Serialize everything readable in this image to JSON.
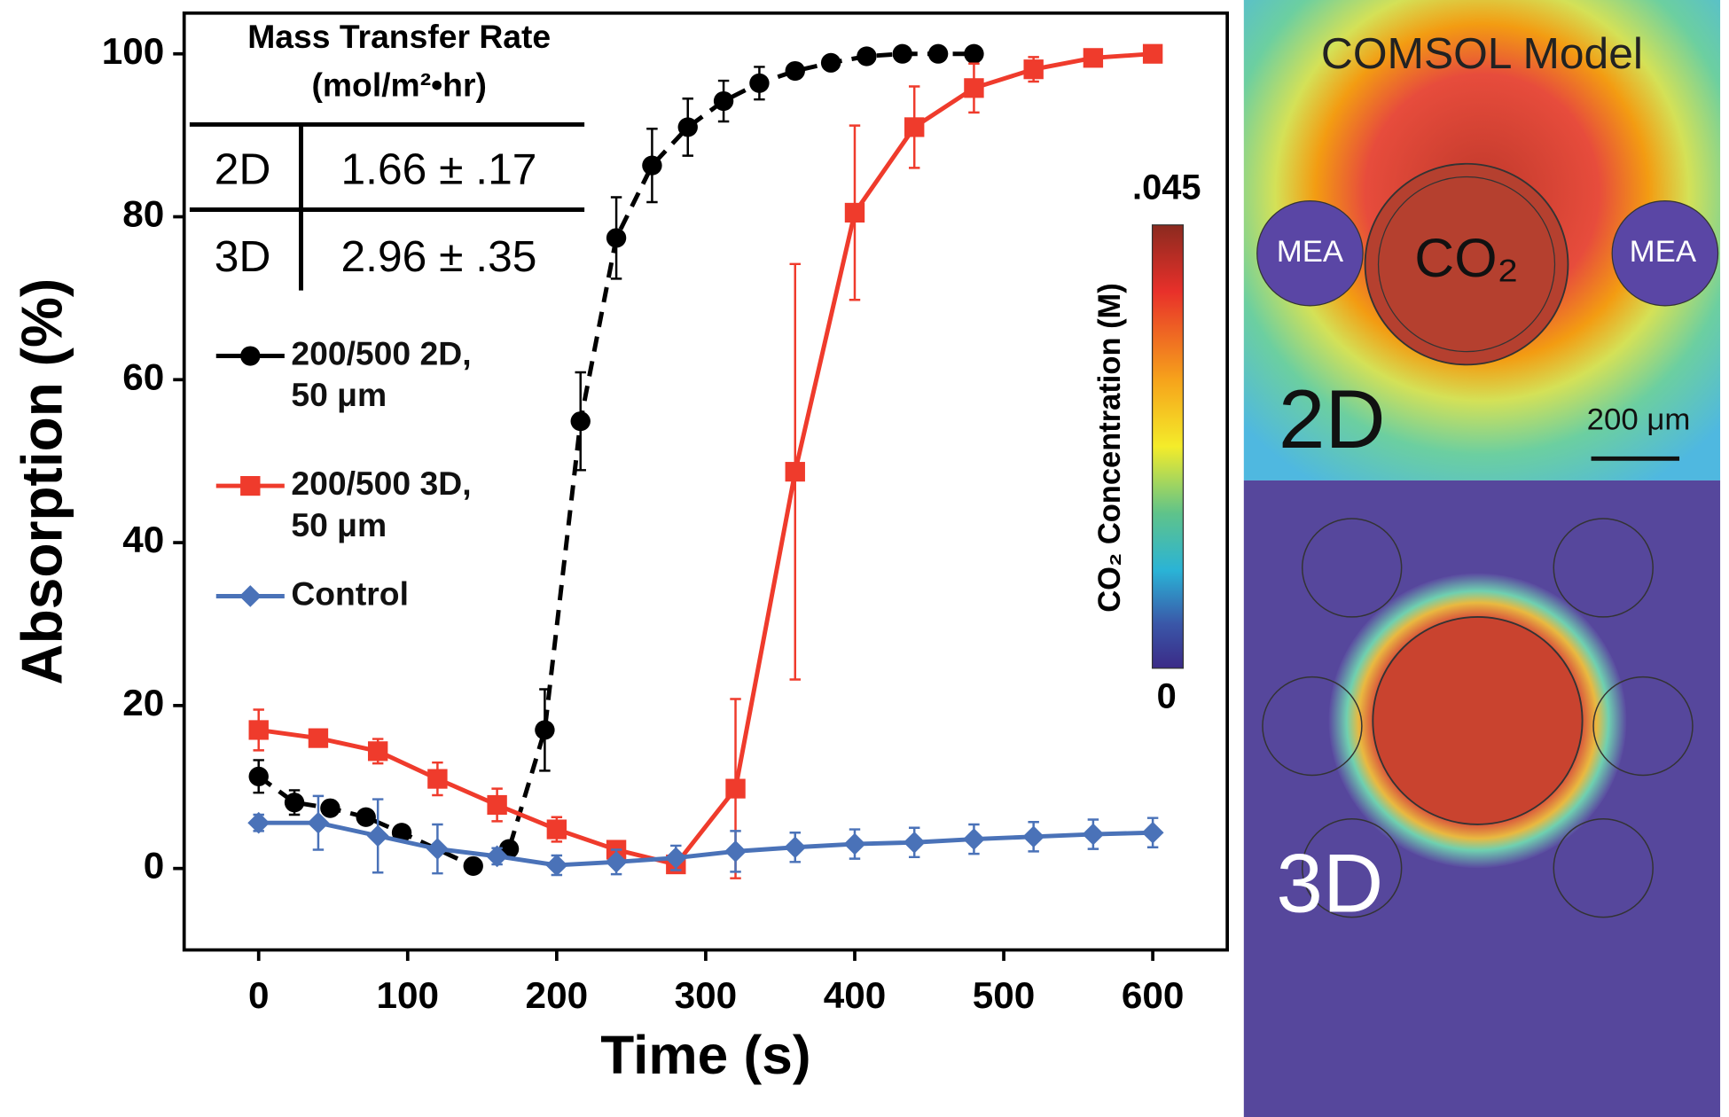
{
  "chart_data": {
    "type": "line",
    "x_label": "Time (s)",
    "y_label": "Absorption (%)",
    "xlim": [
      -50,
      650
    ],
    "ylim": [
      -10,
      105
    ],
    "xticks": [
      0,
      100,
      200,
      300,
      400,
      500,
      600
    ],
    "yticks": [
      0,
      20,
      40,
      60,
      80,
      100
    ],
    "series": [
      {
        "name": "200/500 2D, 50 μm",
        "color": "#000000",
        "marker": "circle",
        "dashed": true,
        "x": [
          0,
          24,
          48,
          72,
          96,
          144,
          168,
          192,
          216,
          240,
          264,
          288,
          312,
          336,
          360,
          384,
          408,
          432,
          456,
          480
        ],
        "values": [
          11.3,
          8.1,
          7.4,
          6.3,
          4.4,
          0.3,
          2.4,
          17,
          54.9,
          77.4,
          86.3,
          91,
          94.2,
          96.4,
          97.9,
          98.9,
          99.7,
          100,
          100,
          100
        ],
        "errors": [
          2,
          1.5,
          0,
          0,
          0,
          0,
          0,
          5,
          6,
          5,
          4.5,
          3.5,
          2.5,
          2,
          0.8,
          0.5,
          0,
          0,
          0,
          0
        ]
      },
      {
        "name": "200/500 3D, 50 μm",
        "color": "#ef3b2c",
        "marker": "square",
        "dashed": false,
        "x": [
          0,
          40,
          80,
          120,
          160,
          200,
          240,
          280,
          320,
          360,
          400,
          440,
          480,
          520,
          560,
          600
        ],
        "values": [
          17,
          16,
          14.4,
          11,
          7.8,
          4.8,
          2.3,
          0.5,
          9.8,
          48.7,
          80.5,
          91,
          95.8,
          98.1,
          99.5,
          100
        ],
        "errors": [
          2.5,
          1,
          1.5,
          2,
          2,
          1.5,
          1,
          0.5,
          11,
          25.5,
          10.7,
          5,
          3,
          1.5,
          1,
          0.5
        ]
      },
      {
        "name": "Control",
        "color": "#4a72b8",
        "marker": "diamond",
        "dashed": false,
        "x": [
          0,
          40,
          80,
          120,
          160,
          200,
          240,
          280,
          320,
          360,
          400,
          440,
          480,
          520,
          560,
          600
        ],
        "values": [
          5.6,
          5.6,
          4,
          2.4,
          1.5,
          0.4,
          0.8,
          1.3,
          2.1,
          2.6,
          3,
          3.2,
          3.6,
          3.9,
          4.2,
          4.4
        ],
        "errors": [
          1,
          3.3,
          4.5,
          3,
          1,
          1.2,
          1.5,
          1.5,
          2.5,
          1.8,
          1.8,
          1.8,
          1.8,
          1.8,
          1.8,
          1.8
        ]
      }
    ],
    "table": {
      "title": "Mass Transfer Rate",
      "unit": "(mol/m²•hr)",
      "rows": [
        [
          "2D",
          "1.66 ± .17"
        ],
        [
          "3D",
          "2.96 ± .35"
        ]
      ]
    }
  },
  "model": {
    "title": "COMSOL Model",
    "label_2d": "2D",
    "label_3d": "3D",
    "mea_left": "MEA",
    "mea_right": "MEA",
    "co2": "CO₂",
    "scale": "200 μm",
    "colorbar": {
      "label": "CO₂ Concentration (M)",
      "max": ".045",
      "min": "0"
    }
  }
}
